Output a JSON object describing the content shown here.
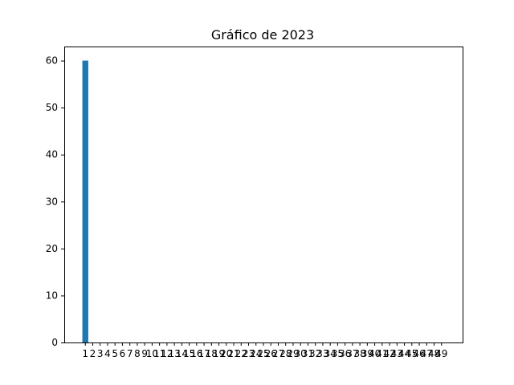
{
  "chart_data": {
    "type": "bar",
    "title": "Gráfico de 2023",
    "xlabel": "",
    "ylabel": "",
    "categories": [
      "1",
      "2",
      "3",
      "4",
      "5",
      "6",
      "7",
      "8",
      "9",
      "10",
      "11",
      "12",
      "13",
      "14",
      "15",
      "16",
      "17",
      "18",
      "19",
      "20",
      "21",
      "22",
      "23",
      "24",
      "25",
      "26",
      "27",
      "28",
      "29",
      "30",
      "31",
      "32",
      "33",
      "34",
      "35",
      "36",
      "37",
      "38",
      "39",
      "40",
      "41",
      "42",
      "43",
      "44",
      "45",
      "46",
      "47",
      "48",
      "49"
    ],
    "values": [
      60,
      0,
      0,
      0,
      0,
      0,
      0,
      0,
      0,
      0,
      0,
      0,
      0,
      0,
      0,
      0,
      0,
      0,
      0,
      0,
      0,
      0,
      0,
      0,
      0,
      0,
      0,
      0,
      0,
      0,
      0,
      0,
      0,
      0,
      0,
      0,
      0,
      0,
      0,
      0,
      0,
      0,
      0,
      0,
      0,
      0,
      0,
      0,
      0
    ],
    "ylim": [
      0,
      63
    ],
    "yticks": [
      0,
      10,
      20,
      30,
      40,
      50,
      60
    ],
    "bar_color": "#1f77b4",
    "grid": false,
    "legend": "none"
  }
}
